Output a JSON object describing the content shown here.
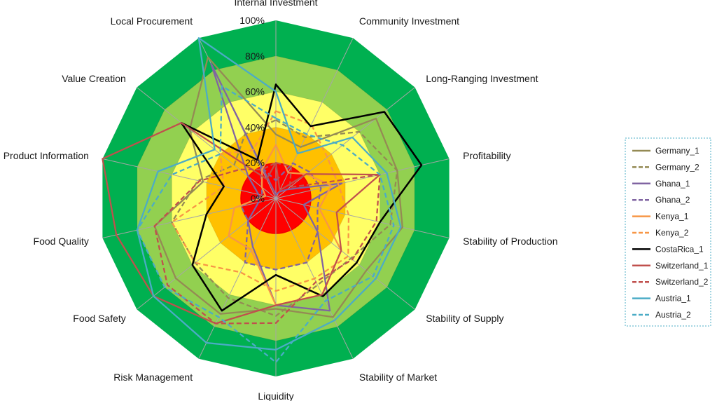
{
  "chart_data": {
    "type": "radar",
    "categories": [
      "Internal Investment",
      "Community Investment",
      "Long-Ranging Investment",
      "Profitability",
      "Stability of Production",
      "Stability of Supply",
      "Stability of Market",
      "Liquidity",
      "Risk Management",
      "Food Safety",
      "Food Quality",
      "Product Information",
      "Value Creation",
      "Local Procurement"
    ],
    "rlim": [
      0,
      100
    ],
    "ticks": [
      "0%",
      "20%",
      "40%",
      "60%",
      "80%",
      "100%"
    ],
    "grid": true,
    "legend_position": "right",
    "bands": [
      {
        "from": 0,
        "to": 20,
        "color": "#ff0000"
      },
      {
        "from": 20,
        "to": 40,
        "color": "#ffc000"
      },
      {
        "from": 40,
        "to": 60,
        "color": "#ffff66"
      },
      {
        "from": 60,
        "to": 80,
        "color": "#92d050"
      },
      {
        "from": 80,
        "to": 100,
        "color": "#00b050"
      }
    ],
    "series": [
      {
        "name": "Germany_1",
        "color": "#948a54",
        "dash": false,
        "values": [
          36,
          32,
          72,
          70,
          73,
          65,
          74,
          62,
          72,
          72,
          70,
          42,
          62,
          88
        ]
      },
      {
        "name": "Germany_2",
        "color": "#948a54",
        "dash": true,
        "values": [
          44,
          38,
          60,
          70,
          66,
          54,
          54,
          66,
          62,
          58,
          60,
          45,
          30,
          40
        ]
      },
      {
        "name": "Ghana_1",
        "color": "#8064a2",
        "dash": false,
        "values": [
          2,
          4,
          8,
          38,
          16,
          30,
          70,
          60,
          30,
          20,
          10,
          10,
          20,
          84
        ]
      },
      {
        "name": "Ghana_2",
        "color": "#8064a2",
        "dash": true,
        "values": [
          10,
          22,
          24,
          26,
          24,
          30,
          40,
          40,
          40,
          20,
          20,
          8,
          10,
          20
        ]
      },
      {
        "name": "Kenya_1",
        "color": "#f79646",
        "dash": false,
        "values": [
          30,
          16,
          22,
          32,
          25,
          47,
          60,
          60,
          32,
          34,
          24,
          6,
          10,
          18
        ]
      },
      {
        "name": "Kenya_2",
        "color": "#f79646",
        "dash": true,
        "values": [
          49,
          46,
          37,
          36,
          42,
          52,
          50,
          52,
          46,
          58,
          60,
          30,
          40,
          30
        ]
      },
      {
        "name": "CostaRica_1",
        "color": "#000000",
        "dash": false,
        "values": [
          64,
          45,
          78,
          84,
          60,
          58,
          61,
          43,
          70,
          60,
          40,
          30,
          68,
          24
        ]
      },
      {
        "name": "Switzerland_1",
        "color": "#c0504d",
        "dash": false,
        "values": [
          20,
          5,
          22,
          60,
          35,
          47,
          60,
          60,
          78,
          88,
          92,
          100,
          68,
          12
        ]
      },
      {
        "name": "Switzerland_2",
        "color": "#c0504d",
        "dash": true,
        "values": [
          20,
          20,
          10,
          60,
          58,
          55,
          52,
          70,
          78,
          78,
          70,
          44,
          26,
          18
        ]
      },
      {
        "name": "Austria_1",
        "color": "#4bacc6",
        "dash": false,
        "values": [
          60,
          28,
          55,
          64,
          72,
          72,
          76,
          85,
          90,
          88,
          80,
          68,
          44,
          100
        ]
      },
      {
        "name": "Austria_2",
        "color": "#4bacc6",
        "dash": true,
        "values": [
          45,
          40,
          48,
          60,
          68,
          70,
          64,
          92,
          74,
          80,
          80,
          60,
          40,
          70
        ]
      }
    ]
  }
}
